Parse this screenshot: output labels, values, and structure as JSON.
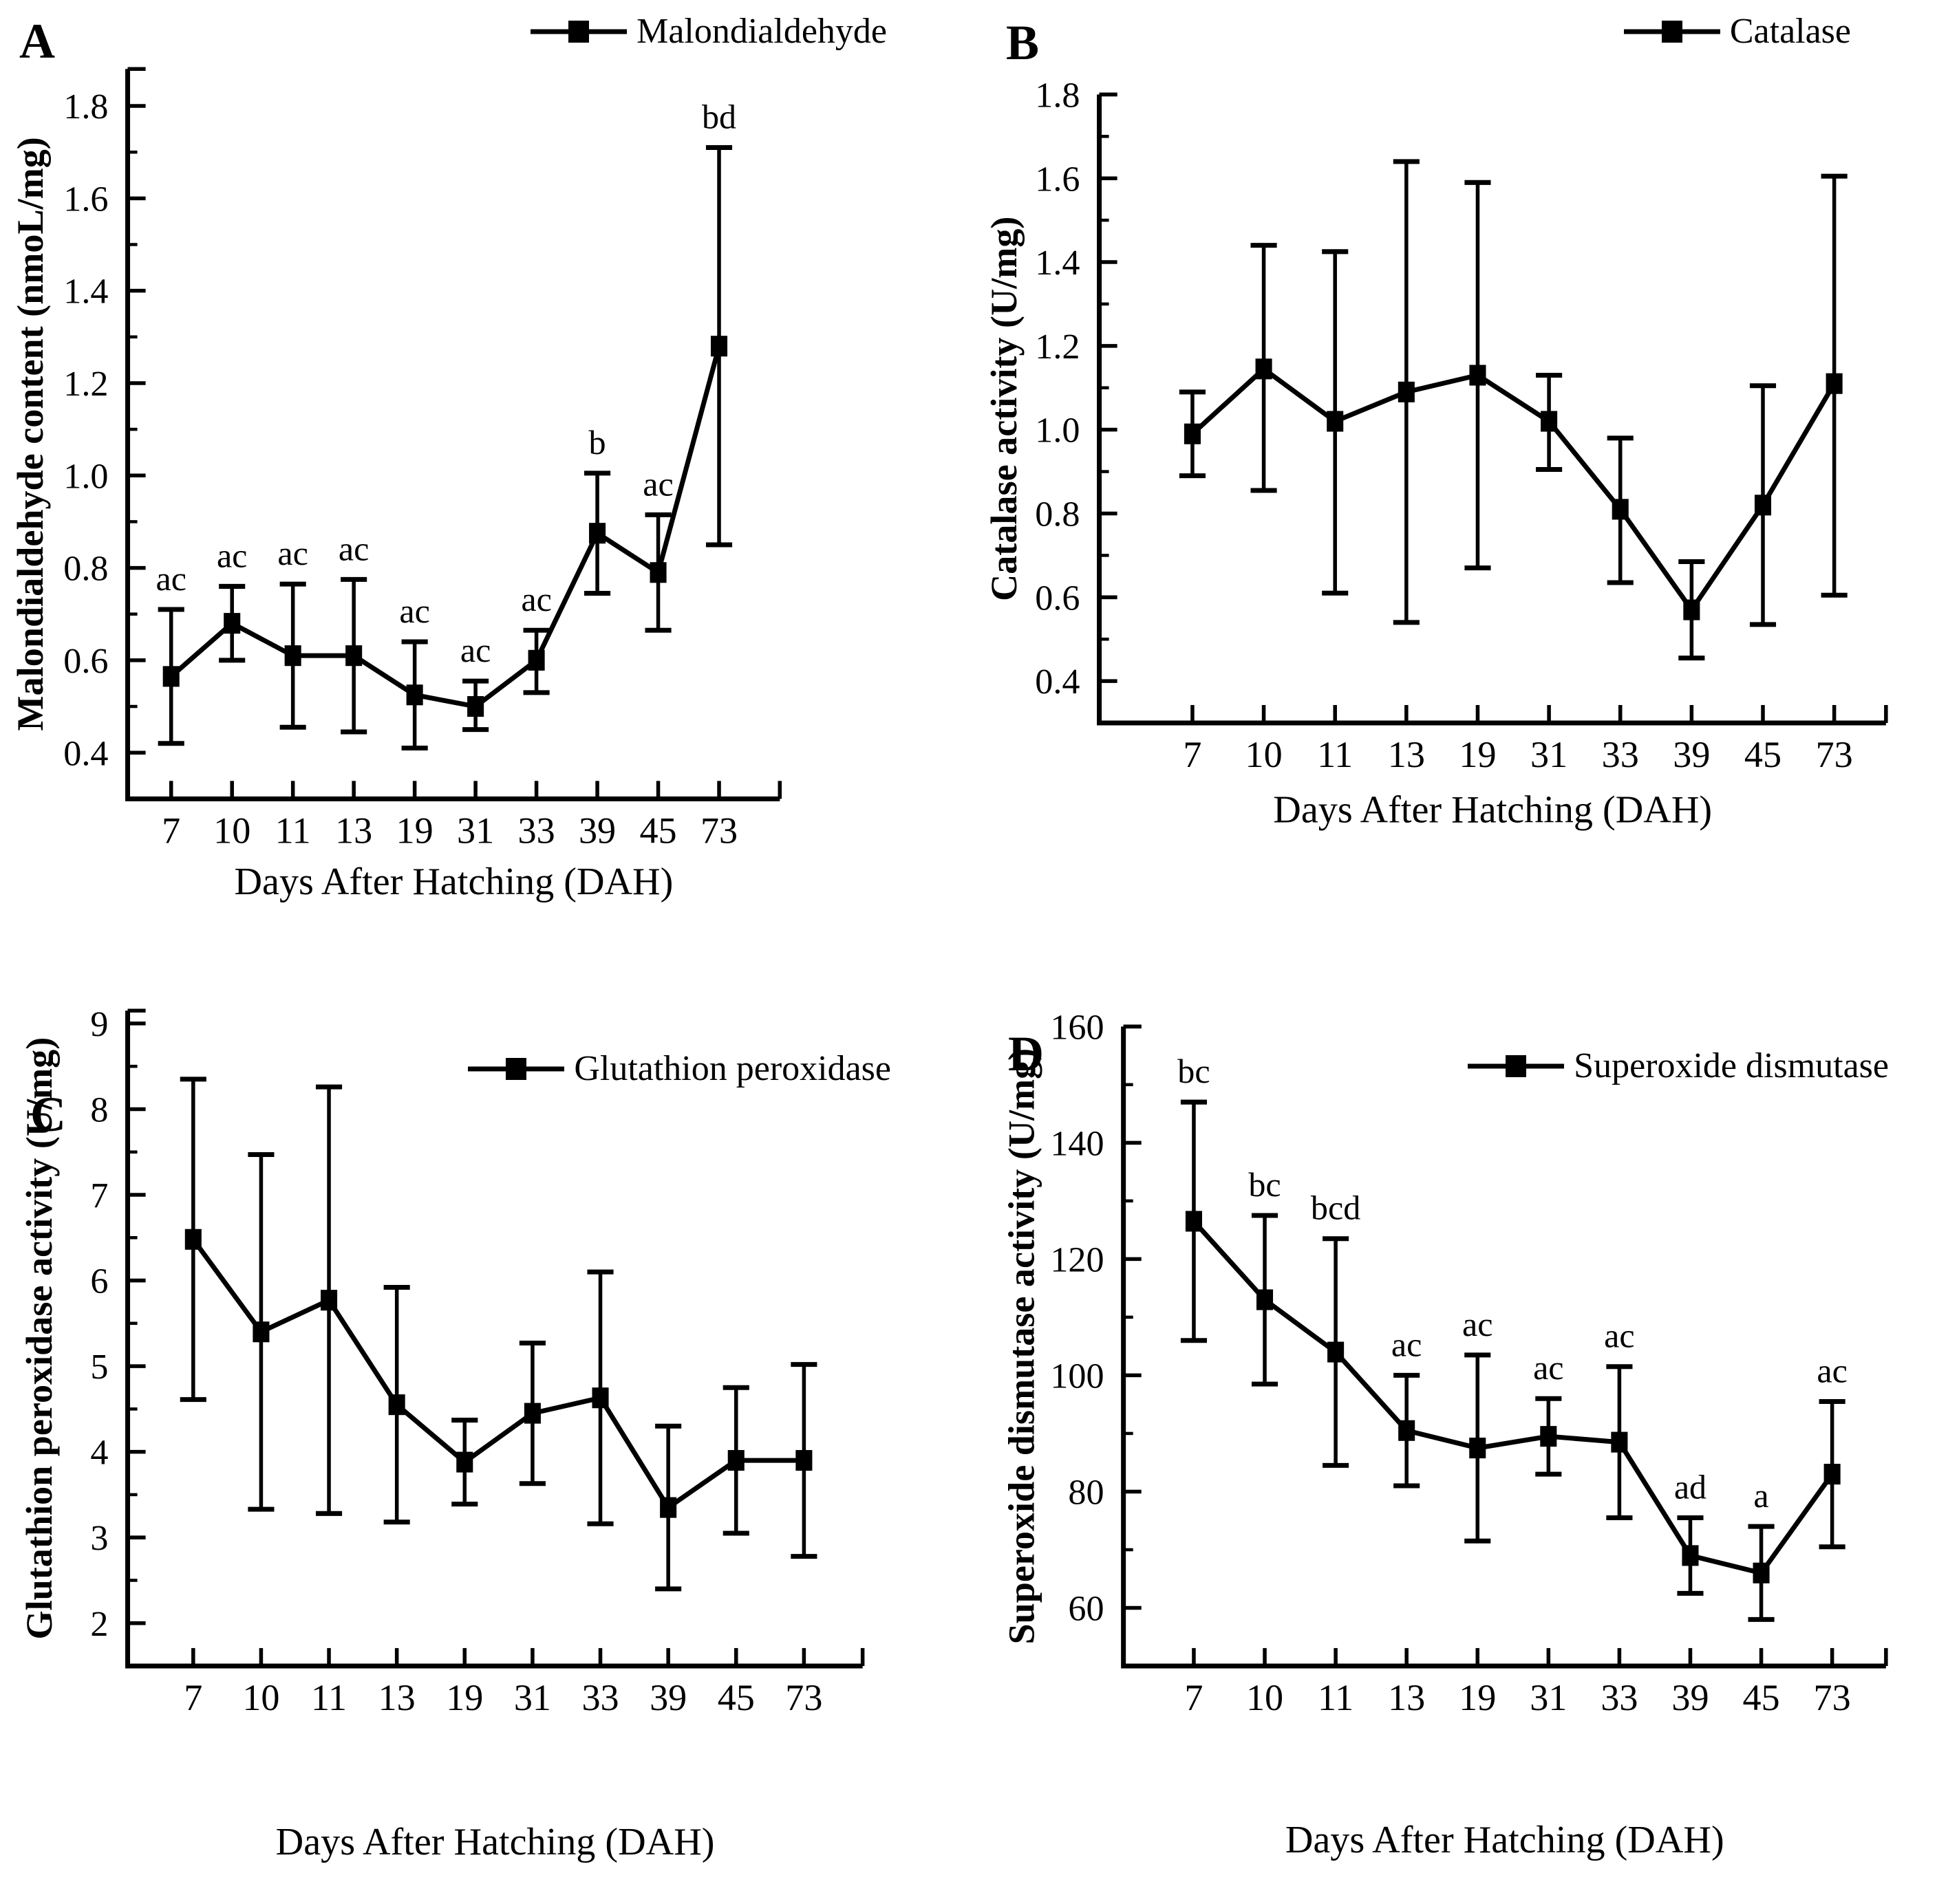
{
  "colors": {
    "foreground": "#000000",
    "background": "#ffffff"
  },
  "chart_data": [
    {
      "type": "line",
      "panel_letter": "A",
      "legend": "Malondialdehyde",
      "xlabel": "Days After Hatching (DAH)",
      "ylabel": "Malondialdehyde content (nmoL/mg)",
      "categories": [
        "7",
        "10",
        "11",
        "13",
        "19",
        "31",
        "33",
        "39",
        "45",
        "73"
      ],
      "series": [
        {
          "name": "Malondialdehyde",
          "values": [
            0.565,
            0.68,
            0.61,
            0.61,
            0.525,
            0.5,
            0.6,
            0.875,
            0.79,
            1.28
          ],
          "error_low": [
            0.42,
            0.6,
            0.455,
            0.445,
            0.41,
            0.45,
            0.53,
            0.745,
            0.665,
            0.85
          ],
          "error_high": [
            0.71,
            0.76,
            0.765,
            0.775,
            0.64,
            0.555,
            0.665,
            1.005,
            0.915,
            1.71
          ]
        }
      ],
      "sig_labels": [
        "ac",
        "ac",
        "ac",
        "ac",
        "ac",
        "ac",
        "ac",
        "b",
        "ac",
        "bd"
      ],
      "ylim": [
        0.3,
        1.88
      ],
      "yticks": {
        "start": 0.4,
        "end": 1.8,
        "step": 0.2,
        "minor_step": 0.1,
        "decimals": 1
      },
      "grid": false,
      "marker": "filled-square",
      "legend_position": "top-right"
    },
    {
      "type": "line",
      "panel_letter": "B",
      "legend": "Catalase",
      "xlabel": "Days After Hatching (DAH)",
      "ylabel": "Catalase activity (U/mg)",
      "categories": [
        "7",
        "10",
        "11",
        "13",
        "19",
        "31",
        "33",
        "39",
        "45",
        "73"
      ],
      "series": [
        {
          "name": "Catalase",
          "values": [
            0.99,
            1.145,
            1.02,
            1.09,
            1.13,
            1.02,
            0.81,
            0.57,
            0.82,
            1.11
          ],
          "error_low": [
            0.89,
            0.855,
            0.61,
            0.54,
            0.67,
            0.905,
            0.635,
            0.455,
            0.535,
            0.605
          ],
          "error_high": [
            1.09,
            1.44,
            1.425,
            1.64,
            1.59,
            1.13,
            0.98,
            0.685,
            1.105,
            1.605
          ]
        }
      ],
      "sig_labels": null,
      "ylim": [
        0.3,
        1.8
      ],
      "yticks": {
        "start": 0.4,
        "end": 1.8,
        "step": 0.2,
        "minor_step": 0.1,
        "decimals": 1
      },
      "grid": false,
      "marker": "filled-square",
      "legend_position": "top-right"
    },
    {
      "type": "line",
      "panel_letter": "C",
      "legend": "Glutathion peroxidase",
      "xlabel": "Days After Hatching (DAH)",
      "ylabel": "Glutathion peroxidase activity (U/mg)",
      "categories": [
        "7",
        "10",
        "11",
        "13",
        "19",
        "31",
        "33",
        "39",
        "45",
        "73"
      ],
      "series": [
        {
          "name": "Glutathion peroxidase",
          "values": [
            6.48,
            5.4,
            5.77,
            4.55,
            3.88,
            4.45,
            4.63,
            3.35,
            3.9,
            3.9
          ],
          "error_low": [
            4.61,
            3.33,
            3.28,
            3.18,
            3.39,
            3.63,
            3.16,
            2.4,
            3.05,
            2.78
          ],
          "error_high": [
            8.35,
            7.47,
            8.26,
            5.92,
            4.37,
            5.27,
            6.1,
            4.3,
            4.75,
            5.02
          ]
        }
      ],
      "sig_labels": null,
      "ylim": [
        1.5,
        9.15
      ],
      "yticks": {
        "start": 2,
        "end": 9,
        "step": 1,
        "minor_step": 0.5,
        "decimals": 0
      },
      "grid": false,
      "marker": "filled-square",
      "legend_position": "top-right"
    },
    {
      "type": "line",
      "panel_letter": "D",
      "legend": "Superoxide dismutase",
      "xlabel": "Days After Hatching (DAH)",
      "ylabel": "Superoxide dismutase activity (U/mg)",
      "categories": [
        "7",
        "10",
        "11",
        "13",
        "19",
        "31",
        "33",
        "39",
        "45",
        "73"
      ],
      "series": [
        {
          "name": "Superoxide dismutase",
          "values": [
            126.5,
            113,
            104,
            90.5,
            87.5,
            89.5,
            88.5,
            69,
            66,
            83
          ],
          "error_low": [
            106,
            98.5,
            84.5,
            81,
            71.5,
            83,
            75.5,
            62.5,
            58,
            70.5
          ],
          "error_high": [
            147,
            127.5,
            123.5,
            100,
            103.5,
            96,
            101.5,
            75.5,
            74,
            95.5
          ]
        }
      ],
      "sig_labels": [
        "bc",
        "bc",
        "bcd",
        "ac",
        "ac",
        "ac",
        "ac",
        "ad",
        "a",
        "ac"
      ],
      "ylim": [
        50,
        160
      ],
      "yticks": {
        "start": 60,
        "end": 160,
        "step": 20,
        "minor_step": 10,
        "decimals": 0
      },
      "grid": false,
      "marker": "filled-square",
      "legend_position": "top-right"
    }
  ]
}
